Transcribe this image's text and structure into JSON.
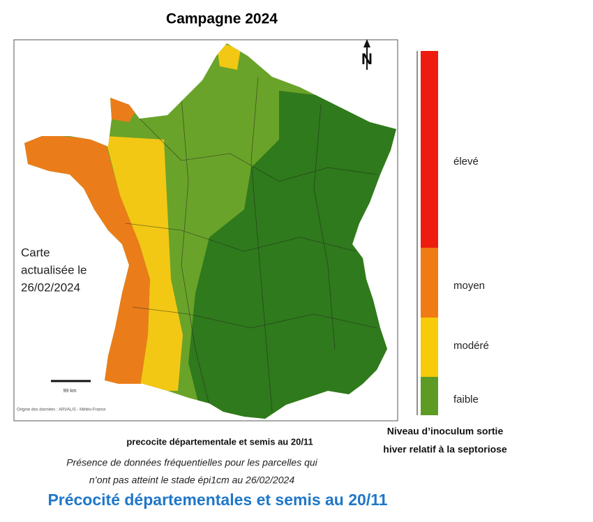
{
  "title": "Campagne 2024",
  "map": {
    "north": "N",
    "update_note": [
      "Carte",
      "actualisée le",
      "26/02/2024"
    ],
    "scale": "99 km",
    "source": "Origine des données : ARVALIS - Météo-France"
  },
  "legend": {
    "levels": [
      "élevé",
      "moyen",
      "modéré",
      "faible"
    ],
    "title": [
      "Niveau d’inoculum sortie",
      "hiver relatif à la septoriose"
    ]
  },
  "caption": "precocite départementale et semis au 20/11",
  "note": [
    "Présence de données fréquentielles pour les parcelles qui",
    "n’ont pas atteint le stade épi1cm au 26/02/2024"
  ],
  "footer": "Précocité départementales et semis au 20/11"
}
